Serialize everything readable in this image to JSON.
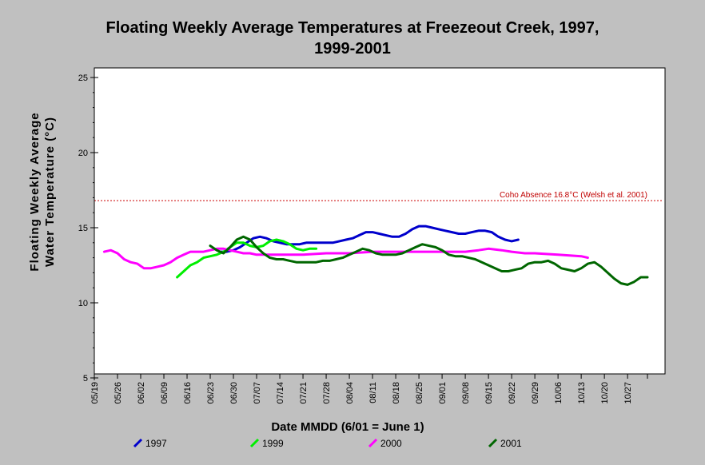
{
  "chart_data": {
    "type": "line",
    "title_lines": [
      "Floating Weekly Average Temperatures at Freezeout Creek, 1997,",
      "1999-2001"
    ],
    "ylabel_lines": [
      "Floating Weekly Average",
      "Water Temperature (°C)"
    ],
    "xlabel": "Date MMDD (6/01 = June 1)",
    "ylim": [
      5,
      25
    ],
    "yticks": [
      "25",
      "20",
      "15",
      "10",
      "5"
    ],
    "yticks_values": [
      25,
      20,
      15,
      10,
      5
    ],
    "x_start": "05/19",
    "x_end": "11/02",
    "xtick_labels": [
      "05/19",
      "05/26",
      "06/02",
      "06/09",
      "06/16",
      "06/23",
      "06/30",
      "07/07",
      "07/14",
      "07/21",
      "07/28",
      "08/04",
      "08/11",
      "08/18",
      "08/25",
      "09/01",
      "09/08",
      "09/15",
      "09/22",
      "09/29",
      "10/06",
      "10/13",
      "10/20",
      "10/27"
    ],
    "threshold": {
      "value": 16.8,
      "label": "Coho Absence 16.8°C (Welsh et al. 2001)",
      "color": "#cc0000"
    },
    "legend_position": "bottom",
    "series": [
      {
        "name": "1997",
        "color": "#0000cc",
        "points": [
          [
            "06/26",
            13.4
          ],
          [
            "06/28",
            13.4
          ],
          [
            "06/30",
            13.5
          ],
          [
            "07/02",
            13.7
          ],
          [
            "07/04",
            14.0
          ],
          [
            "07/06",
            14.3
          ],
          [
            "07/08",
            14.4
          ],
          [
            "07/10",
            14.3
          ],
          [
            "07/12",
            14.1
          ],
          [
            "07/14",
            14.0
          ],
          [
            "07/16",
            13.9
          ],
          [
            "07/18",
            13.9
          ],
          [
            "07/20",
            13.9
          ],
          [
            "07/22",
            14.0
          ],
          [
            "07/24",
            14.0
          ],
          [
            "07/26",
            14.0
          ],
          [
            "07/28",
            14.0
          ],
          [
            "07/30",
            14.0
          ],
          [
            "08/01",
            14.1
          ],
          [
            "08/03",
            14.2
          ],
          [
            "08/05",
            14.3
          ],
          [
            "08/07",
            14.5
          ],
          [
            "08/09",
            14.7
          ],
          [
            "08/11",
            14.7
          ],
          [
            "08/13",
            14.6
          ],
          [
            "08/15",
            14.5
          ],
          [
            "08/17",
            14.4
          ],
          [
            "08/19",
            14.4
          ],
          [
            "08/21",
            14.6
          ],
          [
            "08/23",
            14.9
          ],
          [
            "08/25",
            15.1
          ],
          [
            "08/27",
            15.1
          ],
          [
            "08/29",
            15.0
          ],
          [
            "08/31",
            14.9
          ],
          [
            "09/02",
            14.8
          ],
          [
            "09/04",
            14.7
          ],
          [
            "09/06",
            14.6
          ],
          [
            "09/08",
            14.6
          ],
          [
            "09/10",
            14.7
          ],
          [
            "09/12",
            14.8
          ],
          [
            "09/14",
            14.8
          ],
          [
            "09/16",
            14.7
          ],
          [
            "09/18",
            14.4
          ],
          [
            "09/20",
            14.2
          ],
          [
            "09/22",
            14.1
          ],
          [
            "09/24",
            14.2
          ]
        ]
      },
      {
        "name": "1999",
        "color": "#00ee00",
        "points": [
          [
            "06/13",
            11.7
          ],
          [
            "06/15",
            12.1
          ],
          [
            "06/17",
            12.5
          ],
          [
            "06/19",
            12.7
          ],
          [
            "06/21",
            13.0
          ],
          [
            "06/23",
            13.1
          ],
          [
            "06/25",
            13.2
          ],
          [
            "06/27",
            13.4
          ],
          [
            "06/29",
            13.7
          ],
          [
            "07/01",
            14.0
          ],
          [
            "07/03",
            14.0
          ],
          [
            "07/05",
            13.8
          ],
          [
            "07/07",
            13.7
          ],
          [
            "07/09",
            13.8
          ],
          [
            "07/11",
            14.1
          ],
          [
            "07/13",
            14.2
          ],
          [
            "07/15",
            14.1
          ],
          [
            "07/17",
            13.9
          ],
          [
            "07/19",
            13.6
          ],
          [
            "07/21",
            13.5
          ],
          [
            "07/23",
            13.6
          ],
          [
            "07/25",
            13.6
          ]
        ]
      },
      {
        "name": "2000",
        "color": "#ff00ff",
        "points": [
          [
            "05/22",
            13.4
          ],
          [
            "05/24",
            13.5
          ],
          [
            "05/26",
            13.3
          ],
          [
            "05/28",
            12.9
          ],
          [
            "05/30",
            12.7
          ],
          [
            "06/01",
            12.6
          ],
          [
            "06/03",
            12.3
          ],
          [
            "06/05",
            12.3
          ],
          [
            "06/07",
            12.4
          ],
          [
            "06/09",
            12.5
          ],
          [
            "06/11",
            12.7
          ],
          [
            "06/13",
            13.0
          ],
          [
            "06/15",
            13.2
          ],
          [
            "06/17",
            13.4
          ],
          [
            "06/19",
            13.4
          ],
          [
            "06/21",
            13.4
          ],
          [
            "06/23",
            13.5
          ],
          [
            "06/25",
            13.6
          ],
          [
            "06/27",
            13.6
          ],
          [
            "06/29",
            13.5
          ],
          [
            "07/01",
            13.4
          ],
          [
            "07/03",
            13.3
          ],
          [
            "07/05",
            13.3
          ],
          [
            "07/07",
            13.2
          ],
          [
            "07/14",
            13.2
          ],
          [
            "07/21",
            13.2
          ],
          [
            "07/28",
            13.3
          ],
          [
            "08/04",
            13.3
          ],
          [
            "08/11",
            13.4
          ],
          [
            "08/18",
            13.4
          ],
          [
            "08/25",
            13.4
          ],
          [
            "09/01",
            13.4
          ],
          [
            "09/08",
            13.4
          ],
          [
            "09/12",
            13.5
          ],
          [
            "09/15",
            13.6
          ],
          [
            "09/19",
            13.5
          ],
          [
            "09/22",
            13.4
          ],
          [
            "09/26",
            13.3
          ],
          [
            "09/29",
            13.3
          ],
          [
            "10/06",
            13.2
          ],
          [
            "10/13",
            13.1
          ],
          [
            "10/15",
            13.0
          ]
        ]
      },
      {
        "name": "2001",
        "color": "#006600",
        "points": [
          [
            "06/23",
            13.8
          ],
          [
            "06/25",
            13.5
          ],
          [
            "06/27",
            13.3
          ],
          [
            "06/29",
            13.7
          ],
          [
            "07/01",
            14.2
          ],
          [
            "07/03",
            14.4
          ],
          [
            "07/05",
            14.2
          ],
          [
            "07/07",
            13.7
          ],
          [
            "07/09",
            13.3
          ],
          [
            "07/11",
            13.0
          ],
          [
            "07/13",
            12.9
          ],
          [
            "07/15",
            12.9
          ],
          [
            "07/17",
            12.8
          ],
          [
            "07/19",
            12.7
          ],
          [
            "07/21",
            12.7
          ],
          [
            "07/23",
            12.7
          ],
          [
            "07/25",
            12.7
          ],
          [
            "07/27",
            12.8
          ],
          [
            "07/29",
            12.8
          ],
          [
            "07/31",
            12.9
          ],
          [
            "08/02",
            13.0
          ],
          [
            "08/04",
            13.2
          ],
          [
            "08/06",
            13.4
          ],
          [
            "08/08",
            13.6
          ],
          [
            "08/10",
            13.5
          ],
          [
            "08/12",
            13.3
          ],
          [
            "08/14",
            13.2
          ],
          [
            "08/16",
            13.2
          ],
          [
            "08/18",
            13.2
          ],
          [
            "08/20",
            13.3
          ],
          [
            "08/22",
            13.5
          ],
          [
            "08/24",
            13.7
          ],
          [
            "08/26",
            13.9
          ],
          [
            "08/28",
            13.8
          ],
          [
            "08/30",
            13.7
          ],
          [
            "09/01",
            13.5
          ],
          [
            "09/03",
            13.2
          ],
          [
            "09/05",
            13.1
          ],
          [
            "09/07",
            13.1
          ],
          [
            "09/09",
            13.0
          ],
          [
            "09/11",
            12.9
          ],
          [
            "09/13",
            12.7
          ],
          [
            "09/15",
            12.5
          ],
          [
            "09/17",
            12.3
          ],
          [
            "09/19",
            12.1
          ],
          [
            "09/21",
            12.1
          ],
          [
            "09/23",
            12.2
          ],
          [
            "09/25",
            12.3
          ],
          [
            "09/27",
            12.6
          ],
          [
            "09/29",
            12.7
          ],
          [
            "10/01",
            12.7
          ],
          [
            "10/03",
            12.8
          ],
          [
            "10/05",
            12.6
          ],
          [
            "10/07",
            12.3
          ],
          [
            "10/09",
            12.2
          ],
          [
            "10/11",
            12.1
          ],
          [
            "10/13",
            12.3
          ],
          [
            "10/15",
            12.6
          ],
          [
            "10/17",
            12.7
          ],
          [
            "10/19",
            12.4
          ],
          [
            "10/21",
            12.0
          ],
          [
            "10/23",
            11.6
          ],
          [
            "10/25",
            11.3
          ],
          [
            "10/27",
            11.2
          ],
          [
            "10/29",
            11.4
          ],
          [
            "10/31",
            11.7
          ],
          [
            "11/02",
            11.7
          ]
        ]
      }
    ]
  }
}
